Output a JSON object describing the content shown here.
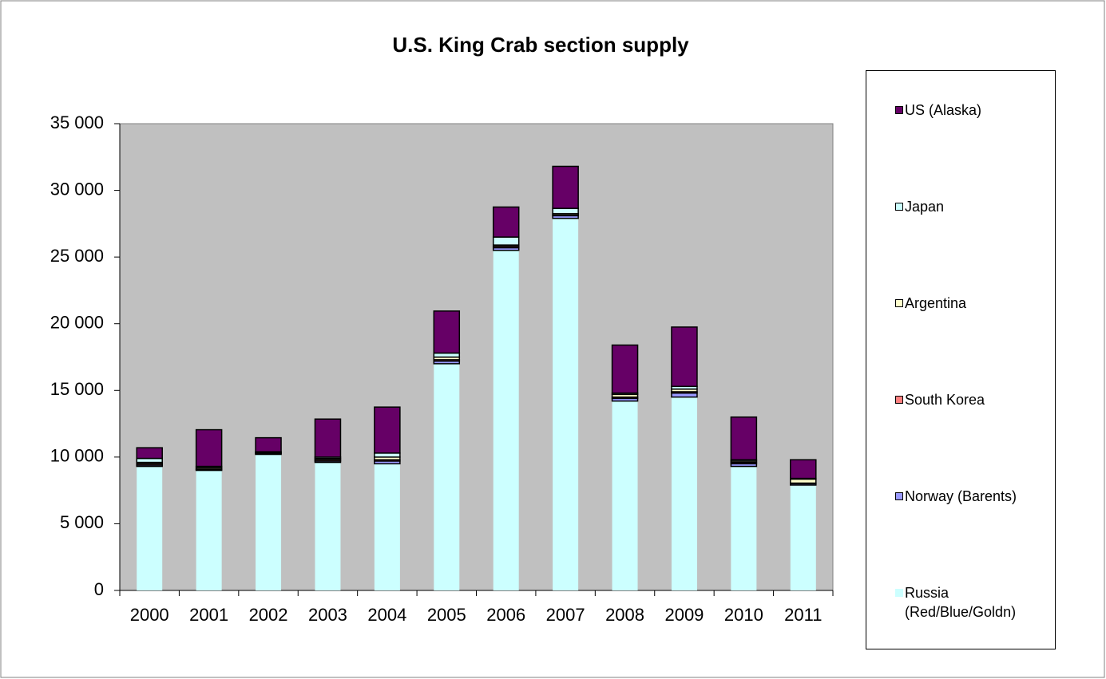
{
  "chart_data": {
    "type": "bar",
    "stacked": true,
    "title": "U.S. King Crab section supply",
    "categories": [
      "2000",
      "2001",
      "2002",
      "2003",
      "2004",
      "2005",
      "2006",
      "2007",
      "2008",
      "2009",
      "2010",
      "2011"
    ],
    "series": [
      {
        "name": "Russia (Red/Blue/Goldn)",
        "color": "#ccffff",
        "values": [
          9300,
          9000,
          10200,
          9600,
          9500,
          17000,
          25500,
          27900,
          14200,
          14500,
          9300,
          7900
        ]
      },
      {
        "name": "Norway (Barents)",
        "color": "#9999ff",
        "values": [
          100,
          50,
          50,
          100,
          200,
          200,
          200,
          200,
          200,
          300,
          200,
          100
        ]
      },
      {
        "name": "South Korea",
        "color": "#ff8080",
        "values": [
          100,
          50,
          50,
          100,
          100,
          100,
          100,
          50,
          100,
          100,
          100,
          50
        ]
      },
      {
        "name": "Argentina",
        "color": "#ffffcc",
        "values": [
          100,
          100,
          50,
          100,
          200,
          200,
          100,
          100,
          200,
          200,
          100,
          300
        ]
      },
      {
        "name": "Japan",
        "color": "#ccffff",
        "values": [
          300,
          100,
          50,
          100,
          300,
          300,
          600,
          400,
          100,
          200,
          100,
          50
        ]
      },
      {
        "name": "US (Alaska)",
        "color": "#660066",
        "values": [
          800,
          2750,
          1050,
          2850,
          3450,
          3150,
          2250,
          3150,
          3600,
          4450,
          3200,
          1400
        ]
      }
    ],
    "ylim": [
      0,
      35000
    ],
    "yticks": [
      0,
      {
        "value": 5000,
        "label": "5 000"
      },
      {
        "value": 10000,
        "label": "10 000"
      },
      {
        "value": 15000,
        "label": "15 000"
      },
      {
        "value": 20000,
        "label": "20 000"
      },
      {
        "value": 25000,
        "label": "25 000"
      },
      {
        "value": 30000,
        "label": "30 000"
      },
      {
        "value": 35000,
        "label": "35 000"
      }
    ],
    "grid": false,
    "legend": "right",
    "plot_background": "#c0c0c0"
  }
}
